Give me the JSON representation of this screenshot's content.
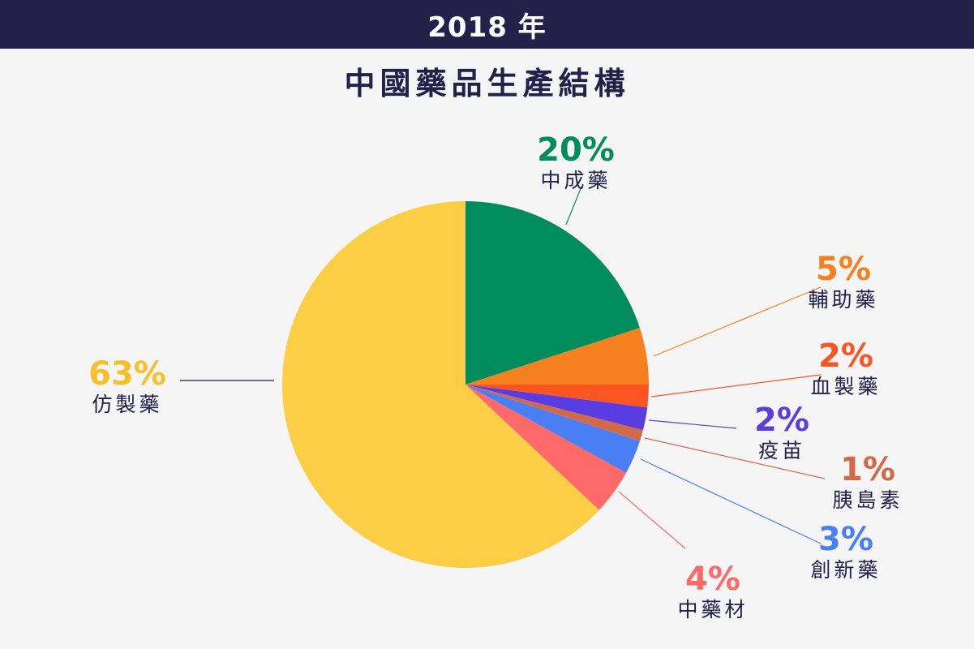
{
  "header": {
    "year": "2018 年",
    "title": "中國藥品生產結構"
  },
  "chart_data": {
    "type": "pie",
    "slices": [
      {
        "label": "中成藥",
        "value": 20,
        "pct_label": "20%",
        "color": "#008c5c"
      },
      {
        "label": "輔助藥",
        "value": 5,
        "pct_label": "5%",
        "color": "#f5801e"
      },
      {
        "label": "血製藥",
        "value": 2,
        "pct_label": "2%",
        "color": "#fd5522"
      },
      {
        "label": "疫苗",
        "value": 2,
        "pct_label": "2%",
        "color": "#5a3de0"
      },
      {
        "label": "胰島素",
        "value": 1,
        "pct_label": "1%",
        "color": "#d2694a"
      },
      {
        "label": "創新藥",
        "value": 3,
        "pct_label": "3%",
        "color": "#4a7ef5"
      },
      {
        "label": "中藥材",
        "value": 4,
        "pct_label": "4%",
        "color": "#fe6a6a"
      },
      {
        "label": "仿製藥",
        "value": 63,
        "pct_label": "63%",
        "color": "#fbce46"
      }
    ],
    "label_colors": {
      "仿製藥": "#f8bf2a"
    }
  }
}
